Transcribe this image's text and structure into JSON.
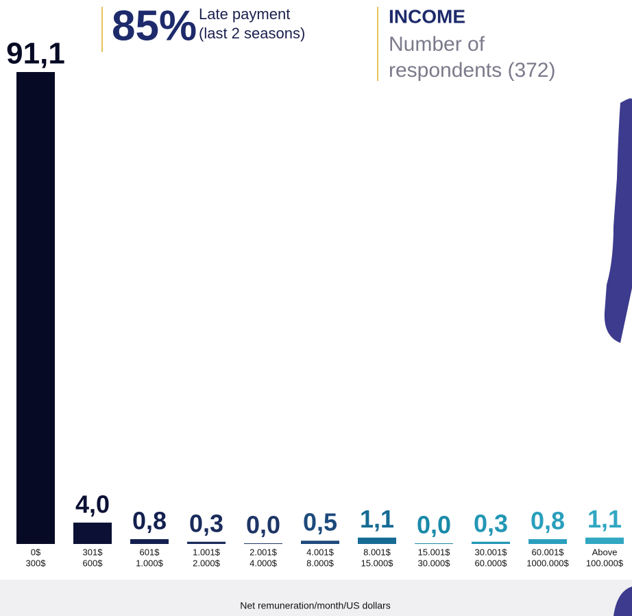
{
  "chart_data": {
    "type": "bar",
    "header": {
      "big_number": "85%",
      "note_lines": [
        "Late payment",
        "(last 2 seasons)"
      ],
      "title": "INCOME",
      "subtitle_lines": [
        "Number of",
        "respondents (372)"
      ]
    },
    "x_label": "Net remuneration/month/US dollars",
    "categories": [
      [
        "0$",
        "300$"
      ],
      [
        "301$",
        "600$"
      ],
      [
        "601$",
        "1.000$"
      ],
      [
        "1.001$",
        "2.000$"
      ],
      [
        "2.001$",
        "4.000$"
      ],
      [
        "4.001$",
        "8.000$"
      ],
      [
        "8.001$",
        "15.000$"
      ],
      [
        "15.001$",
        "30.000$"
      ],
      [
        "30.001$",
        "60.000$"
      ],
      [
        "60.001$",
        "1000.000$"
      ],
      [
        "Above",
        "100.000$"
      ]
    ],
    "values": [
      91.1,
      4.0,
      0.8,
      0.3,
      0.0,
      0.5,
      1.1,
      0.0,
      0.3,
      0.8,
      1.1
    ],
    "value_labels": [
      "91,1",
      "4,0",
      "0,8",
      "0,3",
      "0,0",
      "0,5",
      "1,1",
      "0,0",
      "0,3",
      "0,8",
      "1,1"
    ],
    "colors": [
      "#070a24",
      "#0b1034",
      "#13204f",
      "#1a2b5c",
      "#1e3566",
      "#1d4a7c",
      "#166b94",
      "#1a8aa8",
      "#2397b5",
      "#2a9fbd",
      "#31a7c2"
    ]
  }
}
